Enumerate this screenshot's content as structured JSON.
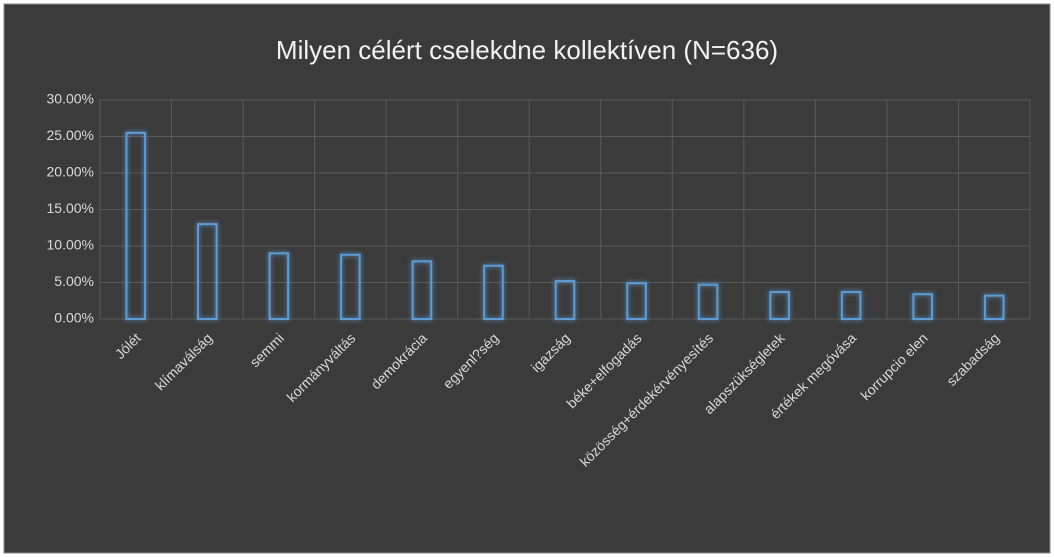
{
  "chart_data": {
    "type": "bar",
    "title": "Milyen célért cselekdne kollektíven (N=636)",
    "categories": [
      "Jólét",
      "klímaválság",
      "semmi",
      "kormányváltás",
      "demokrácia",
      "egyenl?ség",
      "igazság",
      "béke+elfogadás",
      "közösség+érdekérvényesítés",
      "alapszükségletek",
      "értékek megóvása",
      "korrupcio elen",
      "szabadság"
    ],
    "values": [
      25.5,
      13.0,
      9.0,
      8.8,
      7.9,
      7.3,
      5.2,
      4.9,
      4.7,
      3.7,
      3.7,
      3.4,
      3.2
    ],
    "color": "#5b9bd5",
    "ylim": [
      0,
      30
    ],
    "yticks": [
      {
        "value": 0,
        "label": "0.00%"
      },
      {
        "value": 5,
        "label": "5.00%"
      },
      {
        "value": 10,
        "label": "10.00%"
      },
      {
        "value": 15,
        "label": "15.00%"
      },
      {
        "value": 20,
        "label": "20.00%"
      },
      {
        "value": 25,
        "label": "25.00%"
      },
      {
        "value": 30,
        "label": "30.00%"
      }
    ],
    "grid": true
  }
}
